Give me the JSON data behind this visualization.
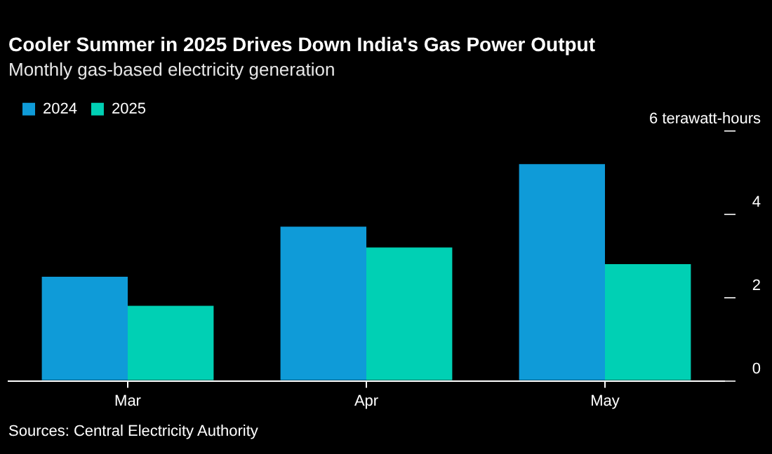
{
  "chart_data": {
    "type": "bar",
    "title": "Cooler Summer in 2025 Drives Down India's Gas Power Output",
    "subtitle": "Monthly gas-based electricity generation",
    "categories": [
      "Mar",
      "Apr",
      "May"
    ],
    "series": [
      {
        "name": "2024",
        "color": "#0f9bd8",
        "values": [
          2.5,
          3.7,
          5.2
        ]
      },
      {
        "name": "2025",
        "color": "#00d0b4",
        "values": [
          1.8,
          3.2,
          2.8
        ]
      }
    ],
    "ylim": [
      0,
      6
    ],
    "yticks": [
      0,
      2,
      4,
      {
        "value": 6,
        "label": "6 terawatt-hours"
      }
    ],
    "grid": false,
    "legend": "top left",
    "annotations": [
      "Sources: Central Electricity Authority"
    ]
  }
}
